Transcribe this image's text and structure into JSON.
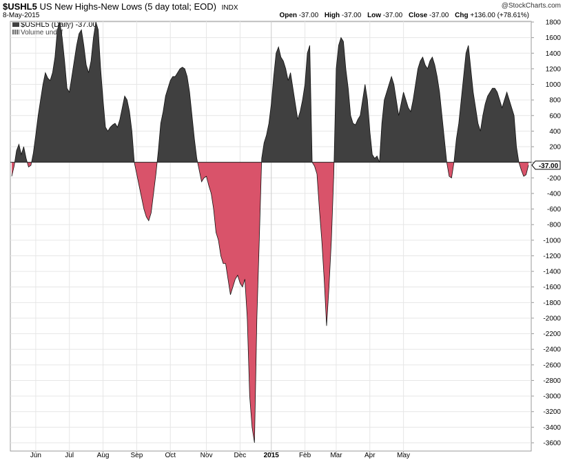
{
  "header": {
    "symbol": "$USHL5",
    "description": "US New Highs-New Lows (5 day total; EOD)",
    "exchange": "INDX",
    "date": "8-May-2015",
    "copyright": "@StockCharts.com",
    "open_label": "Open",
    "open_value": "-37.00",
    "high_label": "High",
    "high_value": "-37.00",
    "low_label": "Low",
    "low_value": "-37.00",
    "close_label": "Close",
    "close_value": "-37.00",
    "chg_label": "Chg",
    "chg_value": "+136.00 (+78.61%)"
  },
  "legend": {
    "series_label": "$USHL5 (Daily) -37.00",
    "volume_label": "Volume undef"
  },
  "colors": {
    "positive": "#404040",
    "negative": "#d9536a",
    "grid": "#e6e6e6"
  },
  "chart_data": {
    "type": "area",
    "series": [
      {
        "name": "$USHL5 (Daily)",
        "values": [
          -180,
          -50,
          150,
          230,
          100,
          200,
          50,
          -60,
          -40,
          120,
          350,
          600,
          800,
          1000,
          1150,
          1080,
          1050,
          1150,
          1350,
          1700,
          1800,
          1600,
          1300,
          950,
          900,
          1100,
          1300,
          1500,
          1650,
          1700,
          1500,
          1250,
          1150,
          1300,
          1600,
          1800,
          1700,
          1200,
          800,
          450,
          400,
          450,
          480,
          500,
          450,
          550,
          700,
          850,
          800,
          650,
          400,
          0,
          -150,
          -300,
          -450,
          -600,
          -700,
          -750,
          -650,
          -400,
          -150,
          150,
          500,
          650,
          850,
          950,
          1050,
          1100,
          1100,
          1150,
          1200,
          1220,
          1200,
          1100,
          900,
          600,
          300,
          50,
          -100,
          -250,
          -200,
          -180,
          -300,
          -400,
          -600,
          -900,
          -1000,
          -1200,
          -1300,
          -1300,
          -1500,
          -1700,
          -1600,
          -1500,
          -1450,
          -1550,
          -1600,
          -1500,
          -2000,
          -3000,
          -3400,
          -3600,
          -2000,
          -1000,
          50,
          250,
          350,
          500,
          750,
          1100,
          1400,
          1480,
          1350,
          1300,
          1200,
          1050,
          1150,
          950,
          750,
          550,
          650,
          800,
          1000,
          1400,
          1500,
          0,
          -50,
          -150,
          -600,
          -1000,
          -1500,
          -2100,
          -1600,
          -1000,
          -150,
          1200,
          1500,
          1600,
          1550,
          1200,
          950,
          600,
          500,
          480,
          550,
          600,
          800,
          1000,
          800,
          400,
          100,
          50,
          80,
          0,
          500,
          800,
          900,
          1000,
          1100,
          1000,
          800,
          600,
          750,
          900,
          800,
          700,
          650,
          800,
          1000,
          1200,
          1300,
          1350,
          1250,
          1200,
          1300,
          1350,
          1250,
          1100,
          900,
          600,
          300,
          0,
          -180,
          -200,
          0,
          300,
          500,
          800,
          1100,
          1400,
          1500,
          1200,
          900,
          700,
          500,
          400,
          600,
          750,
          850,
          900,
          950,
          950,
          900,
          800,
          700,
          800,
          900,
          800,
          700,
          600,
          200,
          0,
          -100,
          -180,
          -160,
          -37
        ]
      }
    ],
    "x_tick_labels": [
      "Jun",
      "Jul",
      "Aug",
      "Sep",
      "Oct",
      "Nov",
      "Dec",
      "2015",
      "Feb",
      "Mar",
      "Apr",
      "May"
    ],
    "x_tick_index": [
      10,
      24,
      38,
      52,
      66,
      81,
      95,
      108,
      122,
      135,
      149,
      163
    ],
    "y_ticks": [
      1800,
      1600,
      1400,
      1200,
      1000,
      800,
      600,
      400,
      200,
      0,
      -200,
      -400,
      -600,
      -800,
      -1000,
      -1200,
      -1400,
      -1600,
      -1800,
      -2000,
      -2200,
      -2400,
      -2600,
      -2800,
      -3000,
      -3200,
      -3400,
      -3600
    ],
    "y_tick_labels": [
      "1800",
      "1600",
      "1400",
      "1200",
      "1000",
      "800",
      "600",
      "400",
      "200",
      "",
      "-200",
      "-400",
      "-600",
      "-800",
      "-1000",
      "-1200",
      "-1400",
      "-1600",
      "-1800",
      "-2000",
      "-2200",
      "-2400",
      "-2600",
      "-2800",
      "-3000",
      "-3200",
      "-3400",
      "-3600"
    ],
    "ylim": [
      -3600,
      1800
    ],
    "last_value_label": "-37.00",
    "grid": true,
    "axis_position": "right"
  }
}
